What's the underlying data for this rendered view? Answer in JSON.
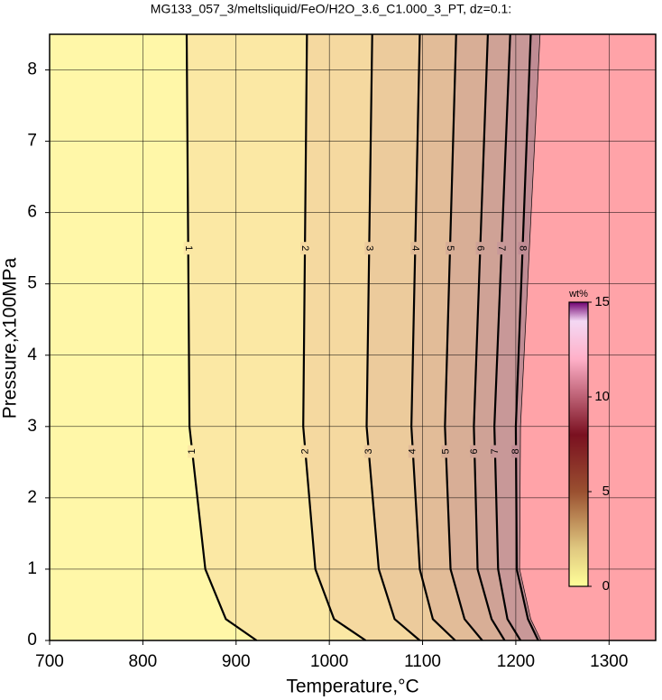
{
  "chart_data": {
    "type": "contour",
    "title": "MG133_057_3/meltsliquid/FeO/H2O_3.6_C1.000_3_PT, dz=0.1:",
    "x_label": "Temperature,°C",
    "y_label": "Pressure,x100MPa",
    "xlim": [
      700,
      1350
    ],
    "ylim": [
      0,
      8.5
    ],
    "xticks": [
      700,
      800,
      900,
      1000,
      1100,
      1200,
      1300
    ],
    "yticks": [
      0,
      1,
      2,
      3,
      4,
      5,
      6,
      7,
      8
    ],
    "grid": true,
    "label_pressures": [
      5.5,
      2.65
    ],
    "contours": [
      {
        "level": 1,
        "T": [
          922,
          889,
          867,
          850,
          847
        ],
        "P": [
          0,
          0.3,
          1,
          3,
          8.5
        ]
      },
      {
        "level": 2,
        "T": [
          1039,
          1005,
          985,
          972,
          976
        ],
        "P": [
          0,
          0.3,
          1,
          3,
          8.5
        ]
      },
      {
        "level": 3,
        "T": [
          1097,
          1070,
          1053,
          1040,
          1046
        ],
        "P": [
          0,
          0.3,
          1,
          3,
          8.5
        ]
      },
      {
        "level": 4,
        "T": [
          1135,
          1111,
          1097,
          1088,
          1097
        ],
        "P": [
          0,
          0.3,
          1,
          3,
          8.5
        ]
      },
      {
        "level": 5,
        "T": [
          1164,
          1145,
          1130,
          1124,
          1136
        ],
        "P": [
          0,
          0.3,
          1,
          3,
          8.5
        ]
      },
      {
        "level": 6,
        "T": [
          1188,
          1174,
          1159,
          1155,
          1170
        ],
        "P": [
          0,
          0.3,
          1,
          3,
          8.5
        ]
      },
      {
        "level": 7,
        "T": [
          1205,
          1191,
          1181,
          1177,
          1194
        ],
        "P": [
          0,
          0.3,
          1,
          3,
          8.5
        ]
      },
      {
        "level": 8,
        "T": [
          1224,
          1213,
          1201,
          1200,
          1216
        ],
        "P": [
          0,
          0.3,
          1,
          3,
          8.5
        ]
      }
    ],
    "boundary": {
      "T": [
        1227,
        1216,
        1204,
        1205,
        1226
      ],
      "P": [
        0,
        0.3,
        1,
        3,
        8.5
      ]
    },
    "fills": [
      "#fff7a8",
      "#fbe8a4",
      "#f5d9a0",
      "#eccb9c",
      "#e2bc98",
      "#d8ae96",
      "#cfa296",
      "#c89898",
      "#c08c94",
      "#ffa3a8"
    ],
    "colorbar": {
      "label": "wt%",
      "clim": [
        0,
        15
      ],
      "ticks": [
        0,
        5,
        10,
        15
      ],
      "stops": [
        [
          0,
          "#ffff99"
        ],
        [
          2,
          "#e0c880"
        ],
        [
          5,
          "#9a5030"
        ],
        [
          8,
          "#7a1020"
        ],
        [
          12,
          "#ffb0c8"
        ],
        [
          14,
          "#f4d8f4"
        ],
        [
          15,
          "#700070"
        ]
      ]
    }
  }
}
